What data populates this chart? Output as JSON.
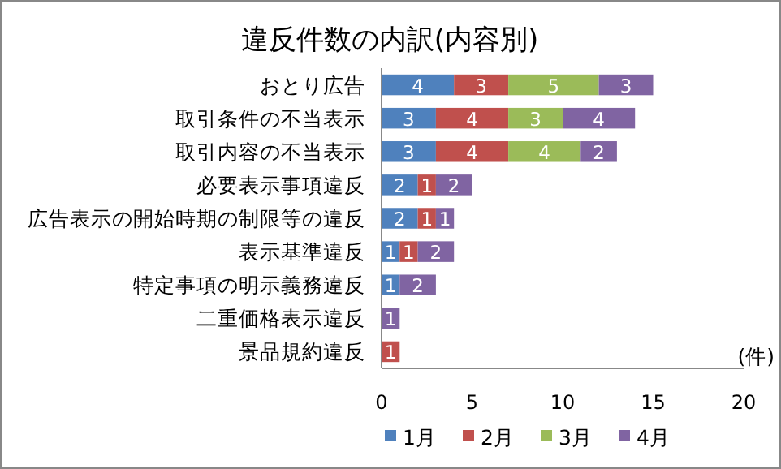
{
  "chart_data": {
    "type": "bar",
    "orientation": "horizontal",
    "stacked": true,
    "title": "違反件数の内訳(内容別)",
    "xlabel": "(件)",
    "categories": [
      "おとり広告",
      "取引条件の不当表示",
      "取引内容の不当表示",
      "必要表示事項違反",
      "広告表示の開始時期の制限等の違反",
      "表示基準違反",
      "特定事項の明示義務違反",
      "二重価格表示違反",
      "景品規約違反"
    ],
    "series": [
      {
        "name": "1月",
        "color": "#4f81bd",
        "values": [
          4,
          3,
          3,
          2,
          2,
          1,
          1,
          null,
          null
        ]
      },
      {
        "name": "2月",
        "color": "#c0504d",
        "values": [
          3,
          4,
          4,
          1,
          1,
          1,
          null,
          null,
          1
        ]
      },
      {
        "name": "3月",
        "color": "#9bbb59",
        "values": [
          5,
          3,
          4,
          null,
          null,
          null,
          null,
          null,
          null
        ]
      },
      {
        "name": "4月",
        "color": "#8064a2",
        "values": [
          3,
          4,
          2,
          2,
          1,
          2,
          2,
          1,
          null
        ]
      }
    ],
    "xlim": [
      0,
      20
    ],
    "xticks": [
      0,
      5,
      10,
      15,
      20
    ],
    "grid": false,
    "legend": "bottom",
    "data_labels": true
  }
}
